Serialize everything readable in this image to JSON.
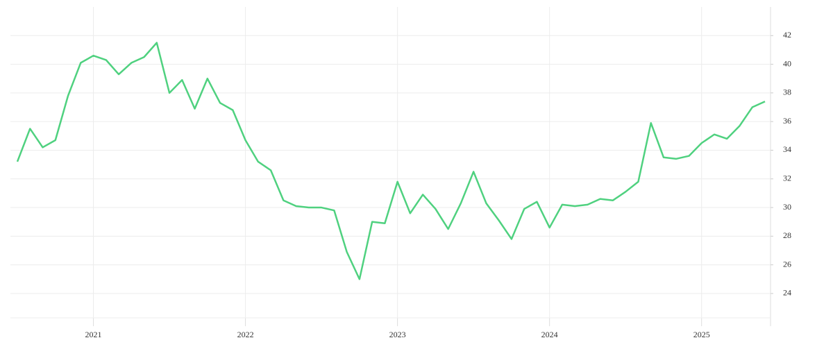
{
  "chart_data": {
    "type": "line",
    "categories": [
      null,
      null,
      null,
      null,
      null,
      null,
      "2021",
      null,
      null,
      null,
      null,
      null,
      null,
      null,
      null,
      null,
      null,
      null,
      "2022",
      null,
      null,
      null,
      null,
      null,
      null,
      null,
      null,
      null,
      null,
      null,
      "2023",
      null,
      null,
      null,
      null,
      null,
      null,
      null,
      null,
      null,
      null,
      null,
      "2024",
      null,
      null,
      null,
      null,
      null,
      null,
      null,
      null,
      null,
      null,
      null,
      "2025",
      null,
      null,
      null,
      null,
      null
    ],
    "series": [
      {
        "color": "#4fd17f",
        "values": [
          33.2,
          35.5,
          34.2,
          34.7,
          37.8,
          40.1,
          40.6,
          40.3,
          39.3,
          40.1,
          40.5,
          41.5,
          38.0,
          38.9,
          36.9,
          39.0,
          37.3,
          36.8,
          34.7,
          33.2,
          32.6,
          30.5,
          30.1,
          30.0,
          30.0,
          29.8,
          26.9,
          25.0,
          29.0,
          28.9,
          31.8,
          29.6,
          30.9,
          29.9,
          28.5,
          30.3,
          32.5,
          30.3,
          29.1,
          27.8,
          29.9,
          30.4,
          28.6,
          30.2,
          30.1,
          30.2,
          30.6,
          30.5,
          31.1,
          31.8,
          35.9,
          33.5,
          33.4,
          33.6,
          34.5,
          35.1,
          34.8,
          35.7,
          37.0,
          37.4
        ]
      }
    ],
    "ylim": [
      22.3,
      44
    ],
    "yticks": [
      24,
      26,
      28,
      30,
      32,
      34,
      36,
      38,
      40,
      42
    ],
    "grid": true,
    "y_axis_side": "right"
  }
}
